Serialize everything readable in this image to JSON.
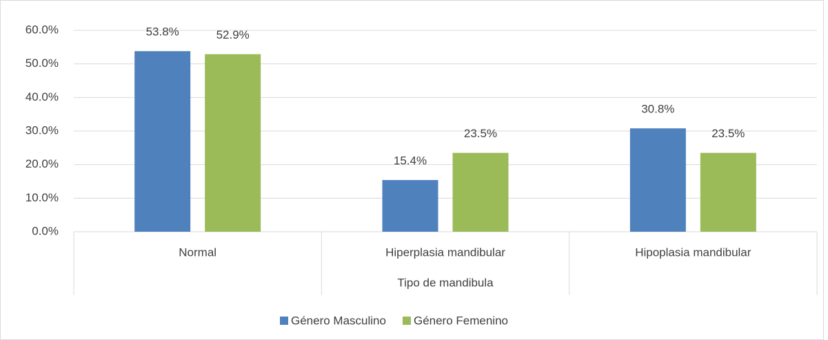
{
  "chart_data": {
    "type": "bar",
    "x_label": "Tipo de mandibula",
    "categories": [
      "Normal",
      "Hiperplasia mandibular",
      "Hipoplasia mandibular"
    ],
    "series": [
      {
        "name": "Género Masculino",
        "color": "#4f81bd",
        "values": [
          53.8,
          15.4,
          30.8
        ],
        "value_labels": [
          "53.8%",
          "15.4%",
          "30.8%"
        ]
      },
      {
        "name": "Género Femenino",
        "color": "#9bbb59",
        "values": [
          52.9,
          23.5,
          23.5
        ],
        "value_labels": [
          "52.9%",
          "23.5%",
          "23.5%"
        ]
      }
    ],
    "ylim": [
      0,
      60
    ],
    "yticks": [
      {
        "value": 0,
        "label": "0.0%"
      },
      {
        "value": 10,
        "label": "10.0%"
      },
      {
        "value": 20,
        "label": "20.0%"
      },
      {
        "value": 30,
        "label": "30.0%"
      },
      {
        "value": 40,
        "label": "40.0%"
      },
      {
        "value": 50,
        "label": "50.0%"
      },
      {
        "value": 60,
        "label": "60.0%"
      }
    ],
    "grid": true,
    "legend": "bottom"
  }
}
